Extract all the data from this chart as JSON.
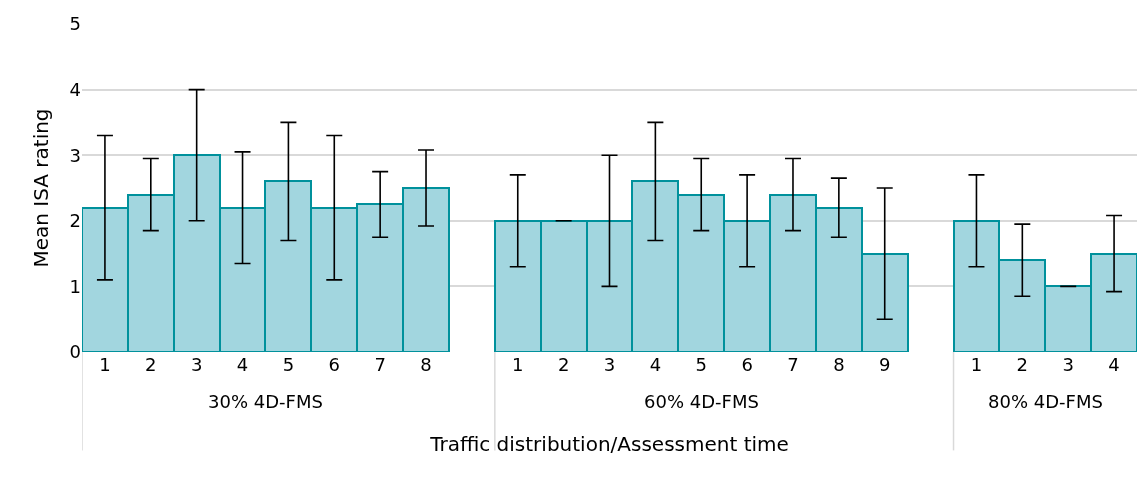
{
  "chart_data": {
    "type": "bar",
    "categories": [
      "1",
      "2",
      "3",
      "4",
      "5",
      "6",
      "7",
      "8",
      null,
      "1",
      "2",
      "3",
      "4",
      "5",
      "6",
      "7",
      "8",
      "9",
      null,
      "1",
      "2",
      "3",
      "4"
    ],
    "values": [
      2.2,
      2.4,
      3.0,
      2.2,
      2.6,
      2.2,
      2.25,
      2.5,
      null,
      2.0,
      2.0,
      2.0,
      2.6,
      2.4,
      2.0,
      2.4,
      2.2,
      1.5,
      null,
      2.0,
      1.4,
      1.0,
      1.5
    ],
    "errors": [
      1.1,
      0.55,
      1.0,
      0.85,
      0.9,
      1.1,
      0.5,
      0.58,
      null,
      0.7,
      0,
      1.0,
      0.9,
      0.55,
      0.7,
      0.55,
      0.45,
      1.0,
      null,
      0.7,
      0.55,
      0,
      0.58
    ],
    "color": "#a2d6df",
    "xlabel": "Traffic distribution/Assessment time",
    "ylabel": "Mean ISA rating",
    "annotations": [
      "30% 4D-FMS",
      "60% 4D-FMS",
      "80% 4D-FMS"
    ],
    "ylim": [
      0,
      5
    ],
    "yticks": [
      0,
      1,
      2,
      3,
      4,
      5
    ],
    "grid": "y",
    "legend": false
  }
}
